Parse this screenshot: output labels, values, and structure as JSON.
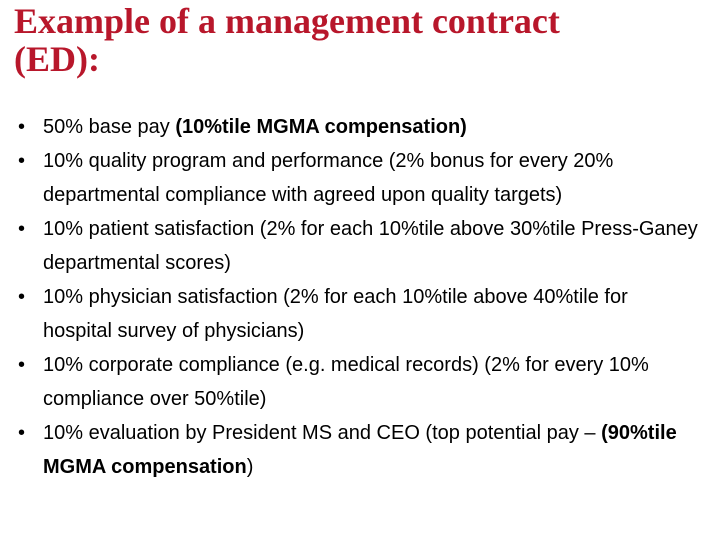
{
  "title": "Example of a management contract (ED):",
  "bullets": [
    {
      "text": "50% base pay ",
      "bold": "(10%tile MGMA compensation)"
    },
    {
      "text": "10% quality program and performance (2% bonus for every 20% departmental compliance with agreed upon quality targets)"
    },
    {
      "text": "10% patient satisfaction (2% for each 10%tile above 30%tile Press-Ganey departmental scores)"
    },
    {
      "text": "10% physician satisfaction (2% for each 10%tile above 40%tile for hospital survey of physicians)"
    },
    {
      "text": "10% corporate compliance (e.g. medical records) (2% for every 10% compliance over 50%tile)"
    },
    {
      "text": "10% evaluation by President MS and CEO (top potential pay – ",
      "bold": "(90%tile MGMA compensation",
      "after": ")"
    }
  ]
}
